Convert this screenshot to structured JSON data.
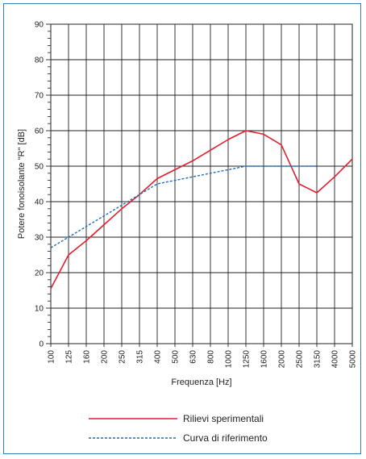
{
  "chart_data": {
    "type": "line",
    "title": "",
    "xlabel": "Frequenza [Hz]",
    "ylabel": "Potere fonoisolante \"R\" [dB]",
    "categories": [
      "100",
      "125",
      "160",
      "200",
      "250",
      "315",
      "400",
      "500",
      "630",
      "800",
      "1000",
      "1250",
      "1600",
      "2000",
      "2500",
      "3150",
      "4000",
      "5000"
    ],
    "ylim": [
      0,
      90
    ],
    "yticks": [
      0,
      10,
      20,
      30,
      40,
      50,
      60,
      70,
      80,
      90
    ],
    "grid": true,
    "legend_position": "bottom",
    "series": [
      {
        "name": "Rilievi sperimentali",
        "color": "#e0202e",
        "style": "solid",
        "values": [
          15.5,
          25.0,
          29.0,
          33.5,
          38.0,
          42.0,
          46.5,
          49.0,
          51.5,
          54.5,
          57.5,
          60.0,
          59.0,
          56.0,
          45.0,
          42.5,
          47.0,
          52.0
        ]
      },
      {
        "name": "Curva di riferimento",
        "color": "#1f6fb5",
        "style": "dashed",
        "values": [
          27.0,
          30.0,
          33.0,
          36.0,
          39.0,
          42.0,
          45.0,
          46.0,
          47.0,
          48.0,
          49.0,
          50.0,
          50.0,
          50.0,
          50.0,
          50.0,
          null,
          null
        ]
      }
    ]
  }
}
